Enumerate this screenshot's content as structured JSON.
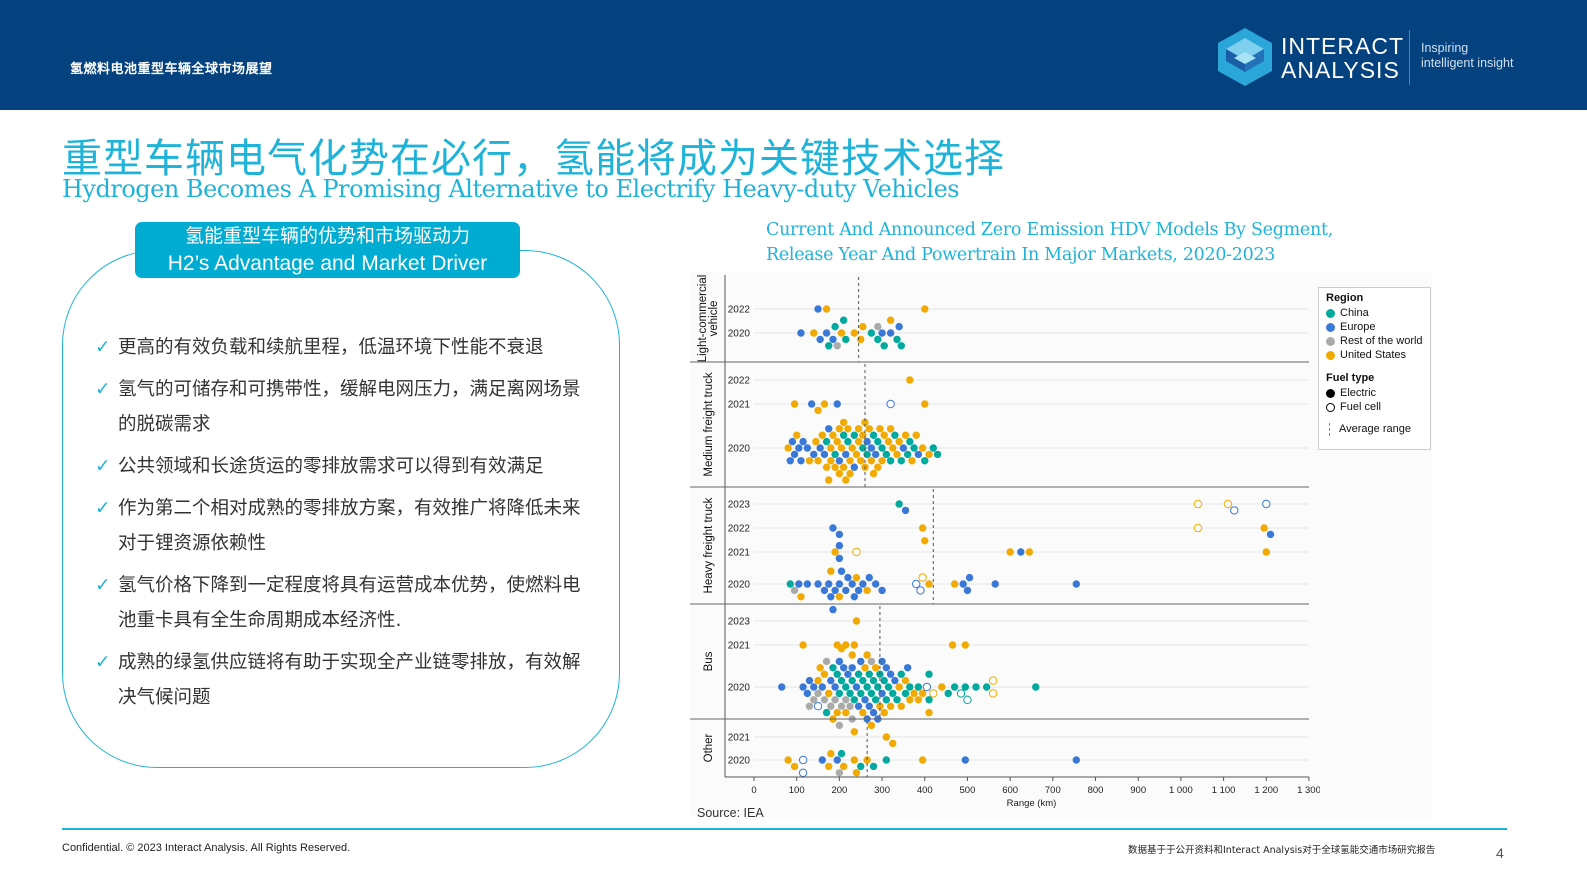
{
  "header": {
    "title": "氢燃料电池重型车辆全球市场展望",
    "logo_line1": "INTERACT",
    "logo_line2": "ANALYSIS",
    "tagline_1": "Inspiring",
    "tagline_2": "intelligent insight",
    "bg_color": "#03417f"
  },
  "title_cn": "重型车辆电气化势在必行，氢能将成为关键技术选择",
  "title_en": "Hydrogen Becomes A Promising Alternative to Electrify Heavy-duty Vehicles",
  "panel": {
    "heading_cn": "氢能重型车辆的优势和市场驱动力",
    "heading_en": "H2’s Advantage and Market Driver",
    "check_icon": "✓",
    "bullets": [
      "更高的有效负载和续航里程，低温环境下性能不衰退",
      "氢气的可储存和可携带性，缓解电网压力，满足离网场景的脱碳需求",
      "公共领域和长途货运的零排放需求可以得到有效满足",
      "作为第二个相对成熟的零排放方案，有效推广将降低未来对于锂资源依赖性",
      "氢气价格下降到一定程度将具有运营成本优势，使燃料电池重卡具有全生命周期成本经济性.",
      "成熟的绿氢供应链将有助于实现全产业链零排放，有效解决气候问题"
    ]
  },
  "chart_title_1": "Current And Announced Zero Emission HDV Models By Segment,",
  "chart_title_2": "Release Year And Powertrain In Major Markets, 2020-2023",
  "source": "Source: IEA",
  "chart_data": {
    "type": "scatter",
    "subtype": "beeswarm",
    "xlabel": "Range (km)",
    "xlim": [
      0,
      1300
    ],
    "xticks": [
      "0",
      "100",
      "200",
      "300",
      "400",
      "500",
      "600",
      "700",
      "800",
      "900",
      "1 000",
      "1 100",
      "1 200",
      "1 300"
    ],
    "grid": "horizontal",
    "legend_position": "right",
    "legend": {
      "region_title": "Region",
      "fuel_title": "Fuel type",
      "regions": [
        {
          "name": "China",
          "color": "#00a99d"
        },
        {
          "name": "Europe",
          "color": "#3a78d8"
        },
        {
          "name": "Rest of the world",
          "color": "#aaaaaa"
        },
        {
          "name": "United States",
          "color": "#f2a900"
        }
      ],
      "fuel_types": [
        "Electric",
        "Fuel cell"
      ],
      "average_label": "Average range"
    },
    "segments": [
      {
        "name": "Light-commercial vehicle",
        "label_lines": [
          "Light-commercial",
          "vehicle"
        ],
        "average": 245,
        "years": [
          {
            "year": "2022",
            "electric": {
              "Europe": [
                150
              ],
              "United States": [
                170,
                400
              ]
            }
          },
          {
            "year": "2020",
            "electric": {
              "China": [
                175,
                190,
                210,
                215,
                275,
                290,
                305,
                335,
                345
              ],
              "Europe": [
                110,
                155,
                170,
                185,
                300,
                320,
                340
              ],
              "Rest of the world": [
                195,
                290
              ],
              "United States": [
                140,
                205,
                235,
                250,
                255,
                320
              ]
            }
          }
        ]
      },
      {
        "name": "Medium freight truck",
        "label_lines": [
          "Medium freight truck"
        ],
        "average": 260,
        "years": [
          {
            "year": "2022",
            "electric": {
              "United States": [
                365
              ]
            }
          },
          {
            "year": "2021",
            "electric": {
              "United States": [
                95,
                150,
                165,
                400
              ],
              "Europe": [
                135,
                195
              ]
            },
            "fuel_cell": {
              "Europe": [
                320
              ]
            }
          },
          {
            "year": "2020",
            "electric": {
              "China": [
                170,
                190,
                210,
                220,
                235,
                255,
                265,
                280,
                290,
                300,
                310,
                320,
                330,
                345,
                360,
                365,
                375,
                400,
                420,
                430
              ],
              "Europe": [
                85,
                90,
                95,
                105,
                110,
                115,
                125,
                140,
                155,
                165,
                175,
                200,
                215,
                235,
                265,
                275,
                285,
                350,
                385
              ],
              "United States": [
                80,
                100,
                130,
                145,
                150,
                160,
                170,
                175,
                180,
                180,
                185,
                190,
                195,
                200,
                200,
                205,
                210,
                210,
                215,
                220,
                225,
                225,
                230,
                240,
                245,
                245,
                250,
                255,
                260,
                260,
                270,
                275,
                280,
                290,
                295,
                300,
                305,
                315,
                320,
                325,
                335,
                340,
                355,
                370,
                380,
                395,
                410
              ]
            }
          }
        ]
      },
      {
        "name": "Heavy freight truck",
        "label_lines": [
          "Heavy freight truck"
        ],
        "average": 420,
        "years": [
          {
            "year": "2023",
            "electric": {
              "China": [
                340
              ],
              "Europe": [
                355
              ]
            },
            "fuel_cell": {
              "United States": [
                1040,
                1110
              ],
              "Europe": [
                1125,
                1200
              ]
            }
          },
          {
            "year": "2022",
            "electric": {
              "Europe": [
                185,
                200,
                1210
              ],
              "United States": [
                395,
                400,
                1195
              ]
            },
            "fuel_cell": {
              "United States": [
                1040
              ]
            }
          },
          {
            "year": "2021",
            "electric": {
              "United States": [
                190,
                600,
                645,
                1200
              ],
              "Europe": [
                200,
                200,
                625
              ]
            },
            "fuel_cell": {
              "United States": [
                240
              ]
            }
          },
          {
            "year": "2020",
            "electric": {
              "China": [
                85
              ],
              "Rest of the world": [
                95
              ],
              "Europe": [
                105,
                125,
                150,
                165,
                175,
                180,
                185,
                190,
                200,
                205,
                215,
                220,
                230,
                235,
                245,
                255,
                270,
                285,
                300,
                490,
                500,
                505,
                565,
                755
              ],
              "United States": [
                110,
                180,
                200,
                240,
                265,
                410,
                470
              ]
            },
            "fuel_cell": {
              "Europe": [
                380,
                390
              ],
              "United States": [
                395
              ]
            }
          }
        ]
      },
      {
        "name": "Bus",
        "label_lines": [
          "Bus"
        ],
        "average": 295,
        "years": [
          {
            "year": "2023",
            "electric": {
              "United States": [
                240
              ]
            }
          },
          {
            "year": "2021",
            "electric": {
              "United States": [
                115,
                195,
                215,
                235,
                465,
                495
              ]
            }
          },
          {
            "year": "2020",
            "electric": {
              "China": [
                170,
                185,
                195,
                200,
                205,
                215,
                225,
                230,
                235,
                245,
                250,
                255,
                265,
                270,
                275,
                280,
                285,
                290,
                295,
                305,
                310,
                315,
                325,
                335,
                345,
                355,
                365,
                385,
                410,
                410,
                455,
                470,
                495,
                520,
                545,
                660
              ],
              "Europe": [
                65,
                115,
                125,
                130,
                140,
                160,
                180,
                190,
                200,
                210,
                220,
                230,
                240,
                245,
                250,
                260,
                265,
                270,
                280,
                290,
                300,
                300,
                310,
                320,
                330,
                360
              ],
              "Rest of the world": [
                130,
                140,
                150,
                165,
                170,
                180,
                190,
                200,
                205,
                215,
                225,
                230,
                275
              ],
              "United States": [
                150,
                155,
                165,
                175,
                185,
                195,
                205,
                215,
                230,
                235,
                255,
                260,
                265,
                275,
                285,
                295,
                305,
                320,
                340,
                345,
                355,
                365,
                375,
                385,
                395,
                410,
                440
              ]
            },
            "fuel_cell": {
              "Europe": [
                150,
                405
              ],
              "China": [
                485,
                500
              ],
              "United States": [
                420,
                560,
                560
              ]
            }
          }
        ]
      },
      {
        "name": "Other",
        "label_lines": [
          "Other"
        ],
        "average": 265,
        "years": [
          {
            "year": "2021",
            "electric": {
              "United States": [
                310,
                325
              ]
            }
          },
          {
            "year": "2020",
            "electric": {
              "United States": [
                80,
                95,
                175,
                180,
                210,
                235,
                240,
                265,
                395
              ],
              "Europe": [
                160,
                195,
                495,
                755
              ],
              "China": [
                205,
                250,
                280,
                310
              ],
              "Rest of the world": [
                200
              ]
            },
            "fuel_cell": {
              "Europe": [
                115,
                115
              ]
            }
          }
        ]
      }
    ]
  },
  "footer": {
    "copyright": "Confidential. © 2023 Interact Analysis. All Rights Reserved.",
    "note": "数据基于于公开资料和Interact Analysis对于全球氢能交通市场研究报告",
    "page": "4"
  }
}
